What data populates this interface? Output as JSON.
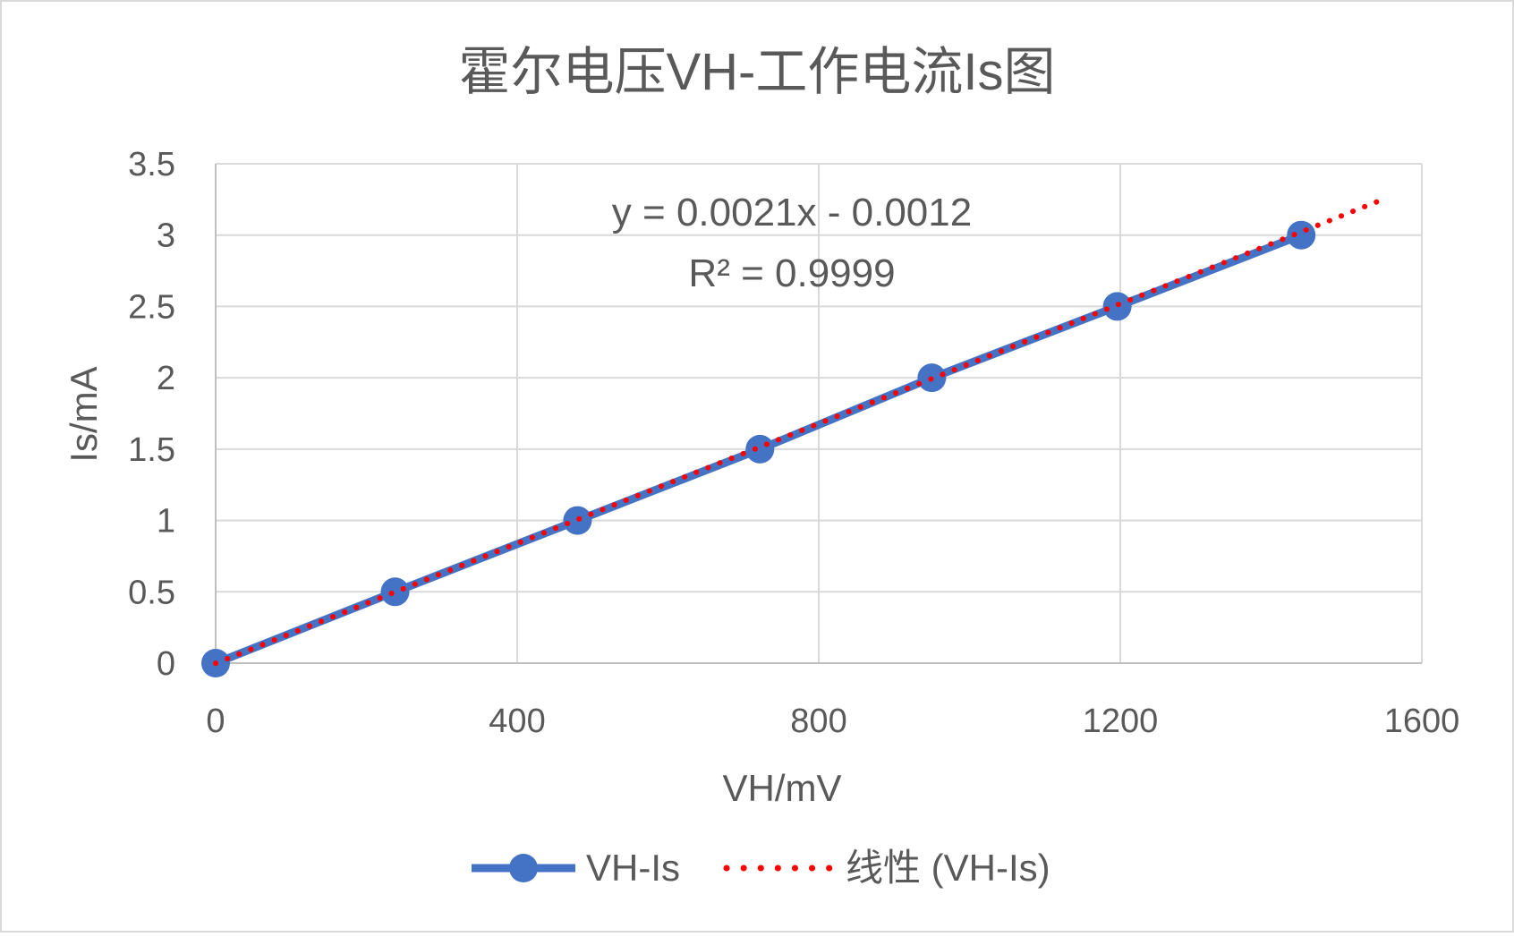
{
  "chart_data": {
    "type": "scatter",
    "title": "霍尔电压VH-工作电流Is图",
    "xlabel": "VH/mV",
    "ylabel": "Is/mA",
    "xlim": [
      0,
      1600
    ],
    "ylim": [
      0,
      3.5
    ],
    "x_ticks": [
      "0",
      "400",
      "800",
      "1200",
      "1600"
    ],
    "y_ticks": [
      "0",
      "0.5",
      "1",
      "1.5",
      "2",
      "2.5",
      "3",
      "3.5"
    ],
    "grid": true,
    "legend_position": "bottom",
    "series": [
      {
        "name": "VH-Is",
        "color": "#4472C4",
        "x": [
          0,
          238,
          480,
          722,
          950,
          1196,
          1440
        ],
        "y": [
          0,
          0.5,
          1.0,
          1.5,
          2.0,
          2.5,
          3.0
        ]
      }
    ],
    "trendline": {
      "name": "线性 (VH-Is)",
      "color": "#FF0000",
      "slope": 0.0021,
      "intercept": -0.0012,
      "x_range": [
        0,
        1555
      ],
      "equation": "y = 0.0021x - 0.0012",
      "r2": "R² = 0.9999"
    }
  }
}
